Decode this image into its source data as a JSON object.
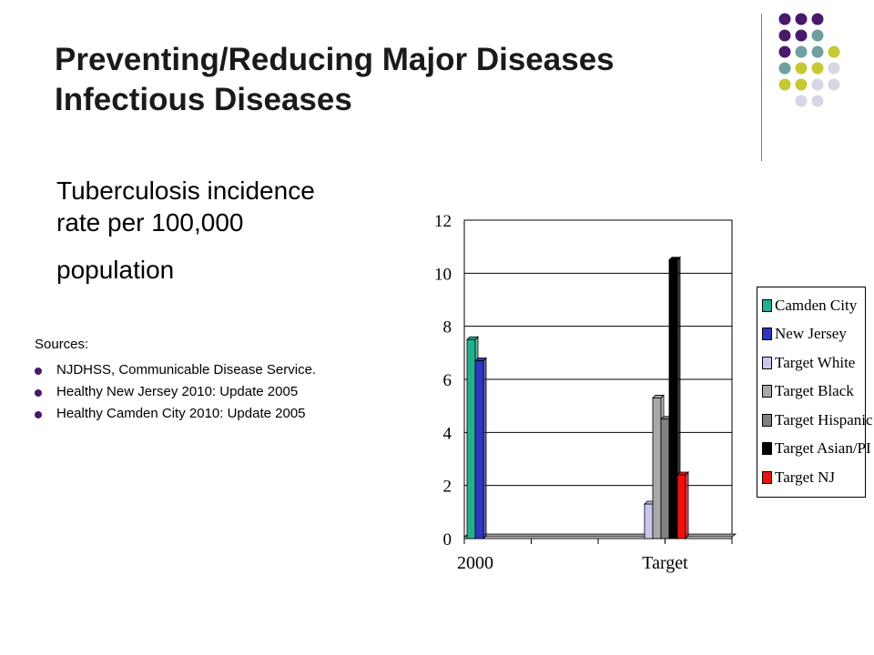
{
  "slide": {
    "title_line1": "Preventing/Reducing Major Diseases",
    "title_line2": "Infectious Diseases",
    "subtitle_line1": "Tuberculosis incidence",
    "subtitle_line2": "rate per 100,000",
    "subtitle_line3": "population",
    "sources_label": "Sources:",
    "sources": [
      "NJDHSS, Communicable Disease Service.",
      "Healthy New Jersey 2010:  Update 2005",
      "Healthy Camden City 2010:   Update 2005"
    ]
  },
  "decor": {
    "dot_colors": [
      "#4a1a6a",
      "#6f9f9f",
      "#c8c832",
      "#d6d6e6"
    ]
  },
  "chart_data": {
    "type": "bar",
    "categories": [
      "2000",
      "Target"
    ],
    "series": [
      {
        "name": "Camden City",
        "color": "#20b090",
        "values": [
          7.5,
          0
        ]
      },
      {
        "name": "New Jersey",
        "color": "#3036c0",
        "values": [
          6.7,
          0
        ]
      },
      {
        "name": "Target White",
        "color": "#c8c8f0",
        "values": [
          0,
          1.3
        ]
      },
      {
        "name": "Target Black",
        "color": "#a8a8a8",
        "values": [
          0,
          5.3
        ]
      },
      {
        "name": "Target Hispanic",
        "color": "#808080",
        "values": [
          0,
          4.5
        ]
      },
      {
        "name": "Target Asian/PI",
        "color": "#000000",
        "values": [
          0,
          10.5
        ]
      },
      {
        "name": "Target NJ",
        "color": "#ee1010",
        "values": [
          0,
          2.4
        ]
      }
    ],
    "yticks": [
      "0",
      "2",
      "4",
      "6",
      "8",
      "10",
      "12"
    ],
    "ylim": [
      0,
      12
    ],
    "grid": true,
    "legend": "right"
  }
}
